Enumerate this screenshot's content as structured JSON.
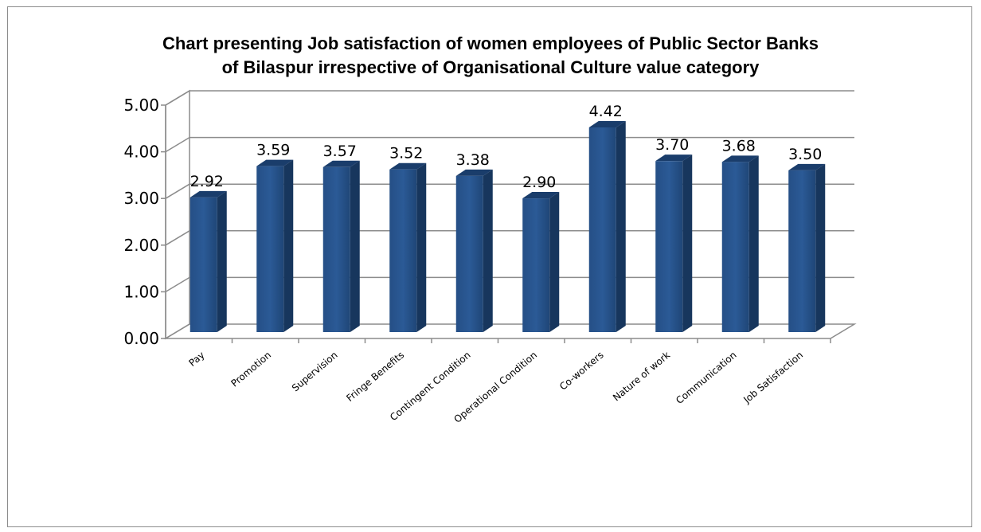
{
  "chart_data": {
    "type": "bar",
    "title_line1": "Chart presenting Job satisfaction of women employees of Public Sector Banks",
    "title_line2": "of Bilaspur  irrespective of Organisational Culture value category",
    "categories": [
      "Pay",
      "Promotion",
      "Supervision",
      "Fringe Benefits",
      "Contingent Condition",
      "Operational Condition",
      "Co-workers",
      "Nature of work",
      "Communication",
      "Job Satisfaction"
    ],
    "values": [
      2.92,
      3.59,
      3.57,
      3.52,
      3.38,
      2.9,
      4.42,
      3.7,
      3.68,
      3.5
    ],
    "value_labels": [
      "2.92",
      "3.59",
      "3.57",
      "3.52",
      "3.38",
      "2.90",
      "4.42",
      "3.70",
      "3.68",
      "3.50"
    ],
    "ylim": [
      0,
      5
    ],
    "yticks": [
      "0.00",
      "1.00",
      "2.00",
      "3.00",
      "4.00",
      "5.00"
    ],
    "grid": true,
    "legend": "none",
    "bar_color": "#1f497d"
  }
}
